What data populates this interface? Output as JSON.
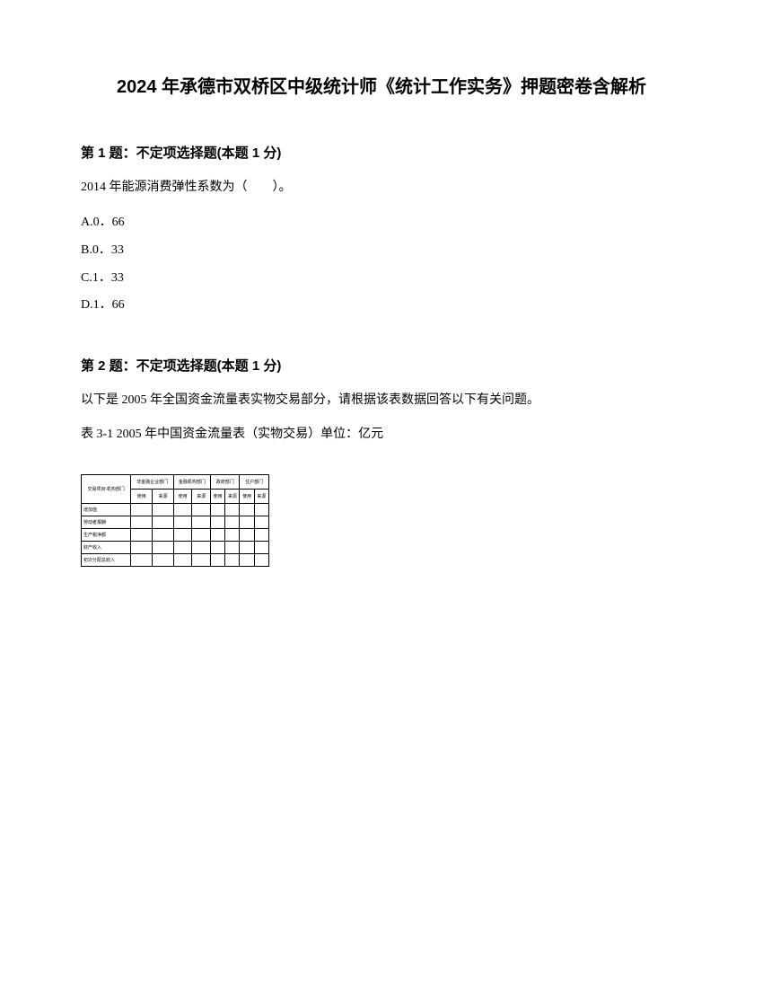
{
  "title": "2024 年承德市双桥区中级统计师《统计工作实务》押题密卷含解析",
  "question1": {
    "header": "第 1 题：不定项选择题(本题 1 分)",
    "text": "2014 年能源消费弹性系数为（　　）。",
    "options": {
      "a": "A.0．66",
      "b": "B.0．33",
      "c": "C.1．33",
      "d": "D.1．66"
    }
  },
  "question2": {
    "header": "第 2 题：不定项选择题(本题 1 分)",
    "text1": "以下是 2005 年全国资金流量表实物交易部分，请根据该表数据回答以下有关问题。",
    "text2": "表 3-1 2005 年中国资金流量表（实物交易）单位：亿元"
  },
  "table": {
    "headers": {
      "col1": "交易项目\\机构部门",
      "col2": "非金融企业部门",
      "col3": "金融机构部门",
      "col4": "政府部门",
      "col5": "住户部门"
    },
    "subheaders": {
      "use": "使用",
      "source": "来源"
    },
    "rows": [
      {
        "label": "增加值",
        "c1": "",
        "c2": "",
        "c3": "",
        "c4": "",
        "c5": "",
        "c6": "",
        "c7": "",
        "c8": ""
      },
      {
        "label": "劳动者报酬",
        "c1": "",
        "c2": "",
        "c3": "",
        "c4": "",
        "c5": "",
        "c6": "",
        "c7": "",
        "c8": ""
      },
      {
        "label": "生产税净额",
        "c1": "",
        "c2": "",
        "c3": "",
        "c4": "",
        "c5": "",
        "c6": "",
        "c7": "",
        "c8": ""
      },
      {
        "label": "财产收入",
        "c1": "",
        "c2": "",
        "c3": "",
        "c4": "",
        "c5": "",
        "c6": "",
        "c7": "",
        "c8": ""
      },
      {
        "label": "初次分配总收入",
        "c1": "",
        "c2": "",
        "c3": "",
        "c4": "",
        "c5": "",
        "c6": "",
        "c7": "",
        "c8": ""
      }
    ]
  }
}
